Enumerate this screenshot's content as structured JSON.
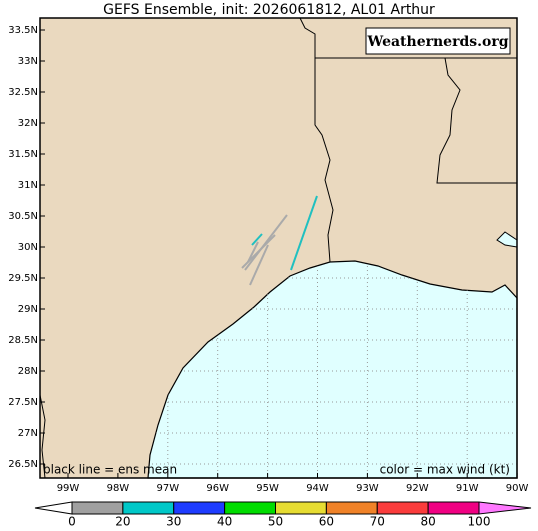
{
  "title": "GEFS Ensemble, init: 2026061812, AL01 Arthur",
  "watermark": "Weathernerds.org",
  "latitude_labels": [
    "33.5N",
    "33N",
    "32.5N",
    "32N",
    "31.5N",
    "31N",
    "30.5N",
    "30N",
    "29.5N",
    "29N",
    "28.5N",
    "28N",
    "27.5N",
    "27N",
    "26.5N"
  ],
  "longitude_labels": [
    "99W",
    "98W",
    "97W",
    "96W",
    "95W",
    "94W",
    "93W",
    "92W",
    "91W",
    "90W"
  ],
  "legend_notes": {
    "left": "black line = ens mean",
    "right": "color = max wind (kt)"
  },
  "colorbar": {
    "ticks": [
      0,
      20,
      30,
      40,
      50,
      60,
      70,
      80,
      100
    ],
    "colors": [
      "#ffffff",
      "#a0a0a0",
      "#00c8c8",
      "#1e3cff",
      "#00dc00",
      "#e6dc32",
      "#f08228",
      "#fa3c3c",
      "#f00082",
      "#ff78ff"
    ]
  }
}
